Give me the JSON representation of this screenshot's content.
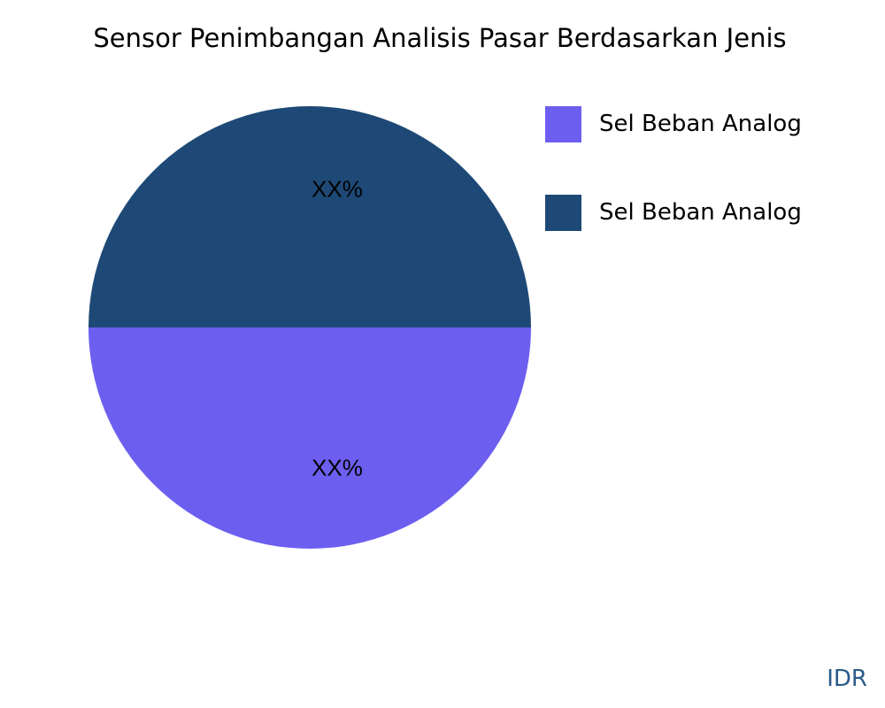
{
  "chart_data": {
    "type": "pie",
    "title": "Sensor Penimbangan Analisis Pasar Berdasarkan Jenis",
    "slices": [
      {
        "name": "Sel Beban Analog",
        "value": 50,
        "label": "XX%",
        "color": "#6c5ff0"
      },
      {
        "name": "Sel Beban Analog",
        "value": 50,
        "label": "XX%",
        "color": "#1e4976"
      }
    ],
    "legend_position": "right"
  },
  "brand": {
    "text": "IDR",
    "color": "#2b5c8a"
  }
}
